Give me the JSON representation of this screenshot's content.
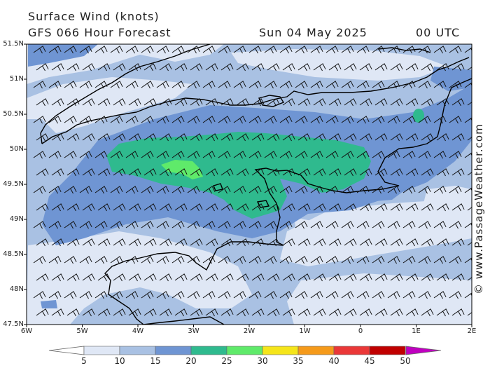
{
  "header": {
    "title": "Surface Wind (knots)",
    "subtitle": "GFS 066 Hour Forecast",
    "date": "Sun 04 May 2025",
    "time": "00 UTC"
  },
  "credit": "© www.PassageWeather.com",
  "axes": {
    "lat_labels": [
      "51.5N",
      "51N",
      "50.5N",
      "50N",
      "49.5N",
      "49N",
      "48.5N",
      "48N",
      "47.5N"
    ],
    "lon_labels": [
      "6W",
      "5W",
      "4W",
      "3W",
      "2W",
      "1W",
      "0",
      "1E",
      "2E"
    ],
    "lat_range": [
      47.5,
      51.5
    ],
    "lon_range": [
      -6,
      2
    ]
  },
  "colorbar": {
    "labels": [
      "5",
      "10",
      "15",
      "20",
      "25",
      "30",
      "35",
      "40",
      "45",
      "50"
    ],
    "colors": [
      "#dfe7f5",
      "#a9c1e3",
      "#6f95d3",
      "#2fba8e",
      "#5fea6a",
      "#f5e51a",
      "#f59a1a",
      "#ea3838",
      "#c00000",
      "#c000c0"
    ]
  },
  "map_colors": {
    "sea_base": "#a9c1e3",
    "calm": "#dfe7f5",
    "moderate": "#6f95d3",
    "strong": "#2fba8e",
    "stronger": "#5fea6a",
    "coast": "#000000"
  }
}
